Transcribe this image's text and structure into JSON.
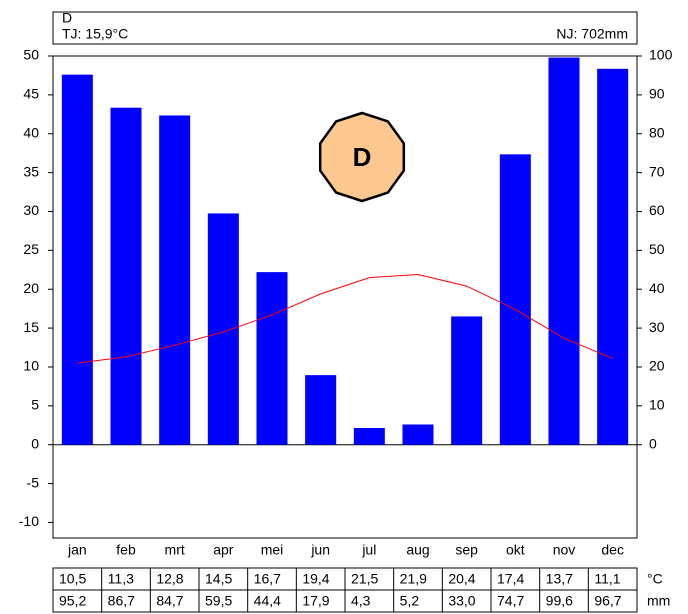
{
  "chart_data": {
    "type": "bar",
    "title": "D",
    "badge": "D",
    "badge_color": "#fcc890",
    "annotations": [
      {
        "text": "TJ: 15,9°C",
        "color": "#ff0000"
      },
      {
        "text": "NJ: 702mm",
        "color": "#0000ff"
      }
    ],
    "categories": [
      "jan",
      "feb",
      "mrt",
      "apr",
      "mei",
      "jun",
      "jul",
      "aug",
      "sep",
      "okt",
      "nov",
      "dec"
    ],
    "series": [
      {
        "type": "line",
        "color": "#ff0000",
        "unit": "°C",
        "values": [
          10.5,
          11.3,
          12.8,
          14.5,
          16.7,
          19.4,
          21.5,
          21.9,
          20.4,
          17.4,
          13.7,
          11.1
        ],
        "value_labels": [
          "10,5",
          "11,3",
          "12,8",
          "14,5",
          "16,7",
          "19,4",
          "21,5",
          "21,9",
          "20,4",
          "17,4",
          "13,7",
          "11,1"
        ]
      },
      {
        "type": "bar",
        "axis": "y2",
        "color": "#0000ff",
        "unit": "mm",
        "values": [
          95.2,
          86.7,
          84.7,
          59.5,
          44.4,
          17.9,
          4.3,
          5.2,
          33.0,
          74.7,
          99.6,
          96.7
        ],
        "value_labels": [
          "95,2",
          "86,7",
          "84,7",
          "59,5",
          "44,4",
          "17,9",
          "4,3",
          "5,2",
          "33,0",
          "74,7",
          "99,6",
          "96,7"
        ]
      }
    ],
    "ylim": [
      -12,
      50
    ],
    "yticks": [
      -10,
      -5,
      0,
      5,
      10,
      15,
      20,
      25,
      30,
      35,
      40,
      45,
      50
    ],
    "y2lim": [
      -24,
      100
    ],
    "y2ticks": [
      0,
      10,
      20,
      30,
      40,
      50,
      60,
      70,
      80,
      90,
      100
    ]
  }
}
